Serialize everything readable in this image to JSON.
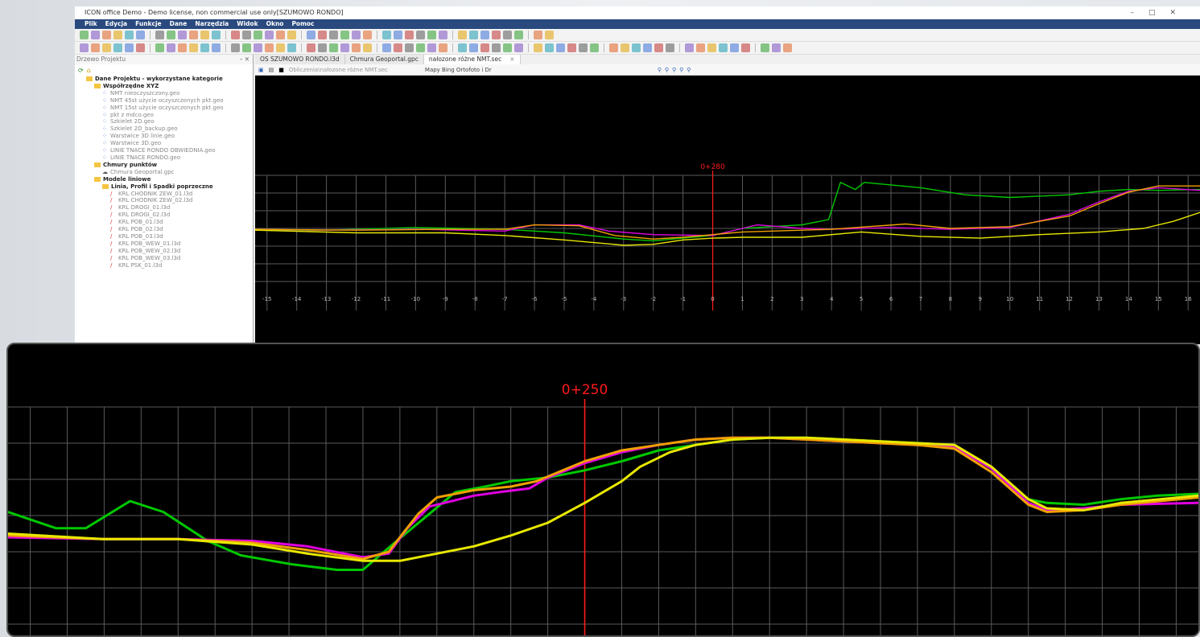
{
  "window": {
    "title": "ICON office Demo - Demo license, non commercial use only[SZUMOWO RONDO]"
  },
  "menu": [
    "Plik",
    "Edycja",
    "Funkcje",
    "Dane",
    "Narzędzia",
    "Widok",
    "Okno",
    "Pomoc"
  ],
  "panel": {
    "title": "Drzewo Projektu",
    "pin": "– ✕"
  },
  "tree": [
    {
      "label": "Dane Projektu - wykorzystane kategorie",
      "level": 1,
      "kind": "folder",
      "bold": true
    },
    {
      "label": "Współrzędne XYZ",
      "level": 2,
      "kind": "folder",
      "bold": true
    },
    {
      "label": "NMT nieoczyszczony.geo",
      "level": 3,
      "kind": "geo"
    },
    {
      "label": "NMT 45st użycie oczyszczonych pkt.geo",
      "level": 3,
      "kind": "geo"
    },
    {
      "label": "NMT 15st użycie oczyszczonych pkt.geo",
      "level": 3,
      "kind": "geo"
    },
    {
      "label": "pkt z mdco.geo",
      "level": 3,
      "kind": "geo"
    },
    {
      "label": "Szkielet 2D.geo",
      "level": 3,
      "kind": "geo"
    },
    {
      "label": "Szkielet 2D_backup.geo",
      "level": 3,
      "kind": "geo"
    },
    {
      "label": "Warstwice 3D linie.geo",
      "level": 3,
      "kind": "geo"
    },
    {
      "label": "Warstwice 3D.geo",
      "level": 3,
      "kind": "geo"
    },
    {
      "label": "LINIE TNACE RONDO OBWIEDNIA.geo",
      "level": 3,
      "kind": "geo"
    },
    {
      "label": "LINIE TNACE RONDO.geo",
      "level": 3,
      "kind": "geo"
    },
    {
      "label": "Chmury punktów",
      "level": 2,
      "kind": "folder",
      "bold": true
    },
    {
      "label": "Chmura Geoportal.gpc",
      "level": 3,
      "kind": "cloud"
    },
    {
      "label": "Modele liniowe",
      "level": 2,
      "kind": "folder",
      "bold": true
    },
    {
      "label": "Linia, Profil i Spadki poprzeczne",
      "level": 3,
      "kind": "folder",
      "bold": true
    },
    {
      "label": "KRL CHODNIK ZEW_01.l3d",
      "level": 4,
      "kind": "line"
    },
    {
      "label": "KRL CHODNIK ZEW_02.l3d",
      "level": 4,
      "kind": "line"
    },
    {
      "label": "KRL DROGI_01.l3d",
      "level": 4,
      "kind": "line"
    },
    {
      "label": "KRL DROGI_02.l3d",
      "level": 4,
      "kind": "line"
    },
    {
      "label": "KRL POB_01.l3d",
      "level": 4,
      "kind": "line"
    },
    {
      "label": "KRL POB_02.l3d",
      "level": 4,
      "kind": "line"
    },
    {
      "label": "KRL POB_03.l3d",
      "level": 4,
      "kind": "line"
    },
    {
      "label": "KRL POB_WEW_01.l3d",
      "level": 4,
      "kind": "line"
    },
    {
      "label": "KRL POB_WEW_02.l3d",
      "level": 4,
      "kind": "line"
    },
    {
      "label": "KRL POB_WEW_03.l3d",
      "level": 4,
      "kind": "line"
    },
    {
      "label": "KRL PSK_01.l3d",
      "level": 4,
      "kind": "line"
    }
  ],
  "tabs": [
    {
      "label": "OS SZUMOWO RONDO.l3d",
      "active": false
    },
    {
      "label": "Chmura Geoportal.gpc",
      "active": false
    },
    {
      "label": "nałozone różne NMT.sec",
      "active": true,
      "close": "×"
    }
  ],
  "doc_tools": {
    "path": "Obliczenia\\nałozone różne NMT.sec",
    "map": "Mapy Bing Ortofoto i Dr"
  },
  "colors": {
    "green": "#00c800",
    "yellow": "#e8e800",
    "magenta": "#e000e0",
    "orange": "#f0a000",
    "station": "#ff1a1a",
    "grid": "#5a5a5a"
  },
  "chart_data": [
    {
      "type": "line",
      "title": "0+280",
      "x_ticks": [
        -15,
        -14,
        -13,
        -12,
        -11,
        -10,
        -9,
        -8,
        -7,
        -6,
        -5,
        -4,
        -3,
        -2,
        -1,
        0,
        1,
        2,
        3,
        4,
        5,
        6,
        7,
        8,
        9,
        10,
        11,
        12,
        13,
        14,
        15,
        16
      ],
      "xlim": [
        -15.4,
        16.4
      ],
      "ylim": [
        0,
        6
      ],
      "station_x": 0,
      "series": [
        {
          "color": "green",
          "points": [
            [
              -15.4,
              2.9
            ],
            [
              -13,
              2.9
            ],
            [
              -10,
              3.05
            ],
            [
              -7,
              2.95
            ],
            [
              -5,
              2.75
            ],
            [
              -3,
              2.4
            ],
            [
              -2,
              2.3
            ],
            [
              -1,
              2.45
            ],
            [
              0,
              2.6
            ],
            [
              1,
              3.0
            ],
            [
              3,
              3.2
            ],
            [
              3.9,
              3.5
            ],
            [
              4.3,
              5.6
            ],
            [
              4.8,
              5.2
            ],
            [
              5.1,
              5.6
            ],
            [
              7,
              5.3
            ],
            [
              8.5,
              4.9
            ],
            [
              10,
              4.75
            ],
            [
              12,
              4.9
            ],
            [
              13,
              5.1
            ],
            [
              14,
              5.2
            ],
            [
              15,
              5.15
            ],
            [
              16.4,
              5.2
            ]
          ]
        },
        {
          "color": "magenta",
          "points": [
            [
              -15.4,
              2.95
            ],
            [
              -13,
              2.9
            ],
            [
              -10,
              2.95
            ],
            [
              -7,
              2.85
            ],
            [
              -6,
              3.2
            ],
            [
              -4.5,
              3.2
            ],
            [
              -3.5,
              2.85
            ],
            [
              -2,
              2.65
            ],
            [
              0,
              2.6
            ],
            [
              1,
              3.0
            ],
            [
              1.5,
              3.2
            ],
            [
              3,
              3.0
            ],
            [
              4,
              2.95
            ],
            [
              6,
              3.05
            ],
            [
              8,
              2.95
            ],
            [
              10,
              3.05
            ],
            [
              12,
              3.8
            ],
            [
              13,
              4.5
            ],
            [
              14,
              5.1
            ],
            [
              15,
              5.3
            ],
            [
              16.4,
              5.15
            ]
          ]
        },
        {
          "color": "orange",
          "points": [
            [
              -15.4,
              2.95
            ],
            [
              -12,
              2.9
            ],
            [
              -9,
              2.95
            ],
            [
              -7,
              2.95
            ],
            [
              -6,
              3.2
            ],
            [
              -4.5,
              3.15
            ],
            [
              -3.3,
              2.6
            ],
            [
              -2,
              2.4
            ],
            [
              -1,
              2.5
            ],
            [
              0,
              2.65
            ],
            [
              1,
              2.8
            ],
            [
              3,
              2.9
            ],
            [
              4,
              2.95
            ],
            [
              6.5,
              3.25
            ],
            [
              8,
              3.0
            ],
            [
              10,
              3.1
            ],
            [
              12,
              3.7
            ],
            [
              13,
              4.4
            ],
            [
              14,
              5.05
            ],
            [
              15,
              5.4
            ],
            [
              16.4,
              5.4
            ]
          ]
        },
        {
          "color": "yellow",
          "points": [
            [
              -15.4,
              2.9
            ],
            [
              -12,
              2.75
            ],
            [
              -9,
              2.75
            ],
            [
              -7,
              2.6
            ],
            [
              -5,
              2.35
            ],
            [
              -3,
              2.05
            ],
            [
              -2,
              2.1
            ],
            [
              -1,
              2.35
            ],
            [
              0,
              2.45
            ],
            [
              1,
              2.5
            ],
            [
              3,
              2.5
            ],
            [
              5,
              2.8
            ],
            [
              7,
              2.55
            ],
            [
              9,
              2.45
            ],
            [
              11,
              2.65
            ],
            [
              13,
              2.8
            ],
            [
              14.5,
              3.0
            ],
            [
              15.5,
              3.4
            ],
            [
              16.4,
              3.9
            ]
          ]
        }
      ]
    },
    {
      "type": "line",
      "title": "0+250",
      "xlim": [
        -15.6,
        16.6
      ],
      "ylim": [
        0,
        6
      ],
      "station_x": 0,
      "series": [
        {
          "color": "green",
          "points": [
            [
              -15.6,
              3.1
            ],
            [
              -14.3,
              2.65
            ],
            [
              -13.5,
              2.65
            ],
            [
              -12.3,
              3.4
            ],
            [
              -11.4,
              3.1
            ],
            [
              -10.2,
              2.3
            ],
            [
              -9.3,
              1.9
            ],
            [
              -7.9,
              1.65
            ],
            [
              -6.7,
              1.5
            ],
            [
              -6,
              1.5
            ],
            [
              -5.2,
              2.2
            ],
            [
              -4.2,
              3.05
            ],
            [
              -3.5,
              3.65
            ],
            [
              -2.7,
              3.8
            ],
            [
              -2,
              3.95
            ],
            [
              -1,
              4.05
            ],
            [
              0,
              4.25
            ],
            [
              1,
              4.5
            ],
            [
              2,
              4.8
            ],
            [
              3,
              4.95
            ],
            [
              4,
              5.1
            ],
            [
              5,
              5.15
            ],
            [
              6,
              5.15
            ],
            [
              7,
              5.1
            ],
            [
              8,
              5.05
            ],
            [
              9,
              5.0
            ],
            [
              10,
              4.95
            ],
            [
              11,
              4.3
            ],
            [
              12,
              3.45
            ],
            [
              12.5,
              3.35
            ],
            [
              13.5,
              3.3
            ],
            [
              14.5,
              3.45
            ],
            [
              15.5,
              3.55
            ],
            [
              16.6,
              3.6
            ]
          ]
        },
        {
          "color": "magenta",
          "points": [
            [
              -15.6,
              2.4
            ],
            [
              -13,
              2.35
            ],
            [
              -11,
              2.35
            ],
            [
              -9,
              2.3
            ],
            [
              -7.5,
              2.15
            ],
            [
              -6,
              1.85
            ],
            [
              -5.3,
              1.95
            ],
            [
              -4.8,
              2.65
            ],
            [
              -4.2,
              3.25
            ],
            [
              -3,
              3.55
            ],
            [
              -2.3,
              3.65
            ],
            [
              -1.5,
              3.75
            ],
            [
              -1,
              4.05
            ],
            [
              0,
              4.45
            ],
            [
              1,
              4.75
            ],
            [
              2,
              4.95
            ],
            [
              3,
              5.1
            ],
            [
              4,
              5.15
            ],
            [
              5,
              5.15
            ],
            [
              6,
              5.1
            ],
            [
              7,
              5.05
            ],
            [
              8,
              5.0
            ],
            [
              9,
              4.95
            ],
            [
              10,
              4.9
            ],
            [
              11,
              4.3
            ],
            [
              12,
              3.35
            ],
            [
              12.5,
              3.15
            ],
            [
              13.5,
              3.2
            ],
            [
              14.5,
              3.3
            ],
            [
              16.6,
              3.35
            ]
          ]
        },
        {
          "color": "orange",
          "points": [
            [
              -15.6,
              2.45
            ],
            [
              -13,
              2.35
            ],
            [
              -11,
              2.35
            ],
            [
              -9,
              2.25
            ],
            [
              -7.5,
              2.05
            ],
            [
              -6,
              1.8
            ],
            [
              -5.3,
              2.0
            ],
            [
              -5,
              2.4
            ],
            [
              -4.5,
              3.05
            ],
            [
              -4,
              3.5
            ],
            [
              -3,
              3.7
            ],
            [
              -2,
              3.8
            ],
            [
              -1.3,
              3.95
            ],
            [
              0,
              4.5
            ],
            [
              1,
              4.8
            ],
            [
              2,
              4.95
            ],
            [
              3,
              5.1
            ],
            [
              4,
              5.15
            ],
            [
              5,
              5.15
            ],
            [
              6,
              5.1
            ],
            [
              7,
              5.05
            ],
            [
              8,
              5.0
            ],
            [
              9,
              4.95
            ],
            [
              10,
              4.85
            ],
            [
              11,
              4.2
            ],
            [
              12,
              3.3
            ],
            [
              12.5,
              3.1
            ],
            [
              13.5,
              3.15
            ],
            [
              14.5,
              3.3
            ],
            [
              16.6,
              3.5
            ]
          ]
        },
        {
          "color": "yellow",
          "points": [
            [
              -15.6,
              2.5
            ],
            [
              -13,
              2.35
            ],
            [
              -11,
              2.35
            ],
            [
              -9,
              2.2
            ],
            [
              -7.5,
              1.95
            ],
            [
              -6,
              1.75
            ],
            [
              -5,
              1.75
            ],
            [
              -4,
              1.95
            ],
            [
              -3,
              2.15
            ],
            [
              -2,
              2.45
            ],
            [
              -1,
              2.8
            ],
            [
              0,
              3.35
            ],
            [
              1,
              3.95
            ],
            [
              1.5,
              4.35
            ],
            [
              2.3,
              4.75
            ],
            [
              3,
              4.95
            ],
            [
              4,
              5.1
            ],
            [
              5,
              5.15
            ],
            [
              6,
              5.15
            ],
            [
              7,
              5.1
            ],
            [
              8,
              5.05
            ],
            [
              9,
              5.0
            ],
            [
              10,
              4.95
            ],
            [
              11,
              4.35
            ],
            [
              12,
              3.45
            ],
            [
              12.5,
              3.2
            ],
            [
              13.5,
              3.15
            ],
            [
              14.5,
              3.35
            ],
            [
              16.6,
              3.55
            ]
          ]
        }
      ]
    }
  ]
}
